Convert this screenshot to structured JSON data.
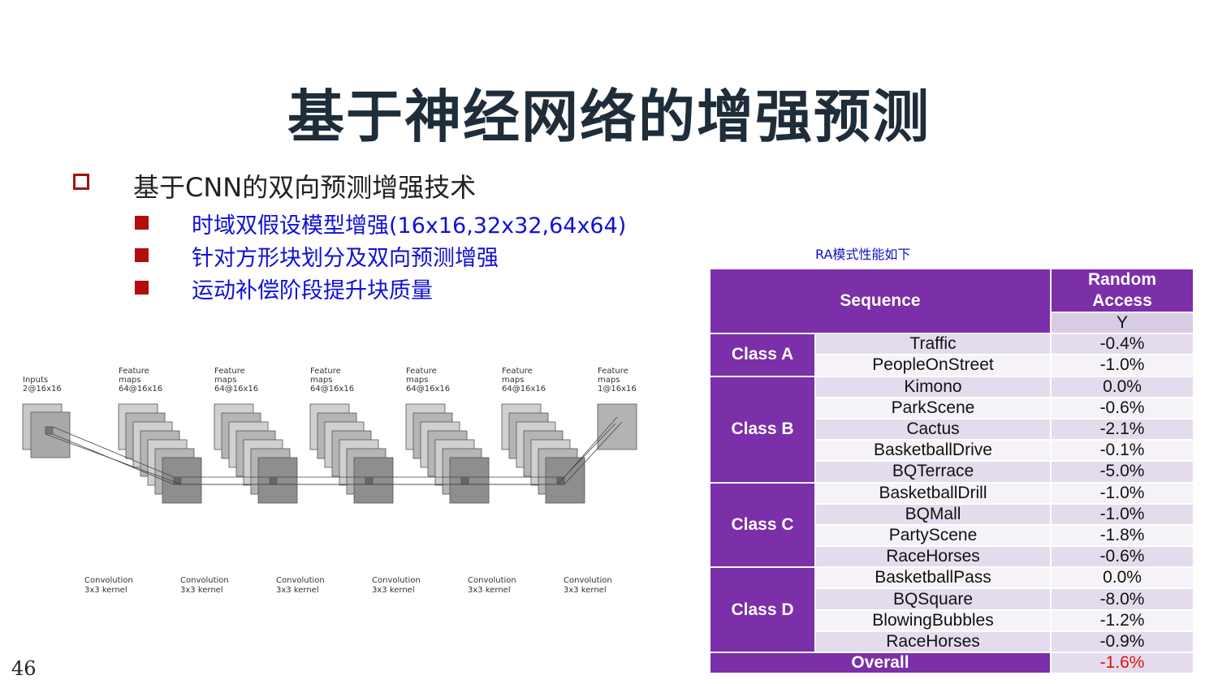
{
  "slide": {
    "title": "基于神经网络的增强预测",
    "page_number": "46"
  },
  "bullet": {
    "main": "基于CNN的双向预测增强技术",
    "subs": [
      "时域双假设模型增强(16x16,32x32,64x64)",
      "针对方形块划分及双向预测增强",
      "运动补偿阶段提升块质量"
    ]
  },
  "diagram": {
    "layers": [
      {
        "line1": "Inputs",
        "line2": "2@16x16"
      },
      {
        "line1": "Feature",
        "line2": "maps",
        "line3": "64@16x16"
      },
      {
        "line1": "Feature",
        "line2": "maps",
        "line3": "64@16x16"
      },
      {
        "line1": "Feature",
        "line2": "maps",
        "line3": "64@16x16"
      },
      {
        "line1": "Feature",
        "line2": "maps",
        "line3": "64@16x16"
      },
      {
        "line1": "Feature",
        "line2": "maps",
        "line3": "64@16x16"
      },
      {
        "line1": "Feature",
        "line2": "maps",
        "line3": "1@16x16"
      }
    ],
    "ops": [
      {
        "line1": "Convolution",
        "line2": "3x3 kernel"
      },
      {
        "line1": "Convolution",
        "line2": "3x3 kernel"
      },
      {
        "line1": "Convolution",
        "line2": "3x3 kernel"
      },
      {
        "line1": "Convolution",
        "line2": "3x3 kernel"
      },
      {
        "line1": "Convolution",
        "line2": "3x3 kernel"
      },
      {
        "line1": "Convolution",
        "line2": "3x3 kernel"
      }
    ]
  },
  "table": {
    "caption": "RA模式性能如下",
    "header_sequence": "Sequence",
    "header_ra_line1": "Random",
    "header_ra_line2": "Access",
    "header_y": "Y",
    "classes": [
      {
        "name": "Class A",
        "rows": [
          {
            "seq": "Traffic",
            "y": "-0.4%"
          },
          {
            "seq": "PeopleOnStreet",
            "y": "-1.0%"
          }
        ]
      },
      {
        "name": "Class B",
        "rows": [
          {
            "seq": "Kimono",
            "y": "0.0%"
          },
          {
            "seq": "ParkScene",
            "y": "-0.6%"
          },
          {
            "seq": "Cactus",
            "y": "-2.1%"
          },
          {
            "seq": "BasketballDrive",
            "y": "-0.1%"
          },
          {
            "seq": "BQTerrace",
            "y": "-5.0%"
          }
        ]
      },
      {
        "name": "Class C",
        "rows": [
          {
            "seq": "BasketballDrill",
            "y": "-1.0%"
          },
          {
            "seq": "BQMall",
            "y": "-1.0%"
          },
          {
            "seq": "PartyScene",
            "y": "-1.8%"
          },
          {
            "seq": "RaceHorses",
            "y": "-0.6%"
          }
        ]
      },
      {
        "name": "Class D",
        "rows": [
          {
            "seq": "BasketballPass",
            "y": "0.0%"
          },
          {
            "seq": "BQSquare",
            "y": "-8.0%"
          },
          {
            "seq": "BlowingBubbles",
            "y": "-1.2%"
          },
          {
            "seq": "RaceHorses",
            "y": "-0.9%"
          }
        ]
      }
    ],
    "overall_label": "Overall",
    "overall_value": "-1.6%",
    "colors": {
      "header": "#7b2fa8",
      "highlight": "#e01010"
    }
  }
}
